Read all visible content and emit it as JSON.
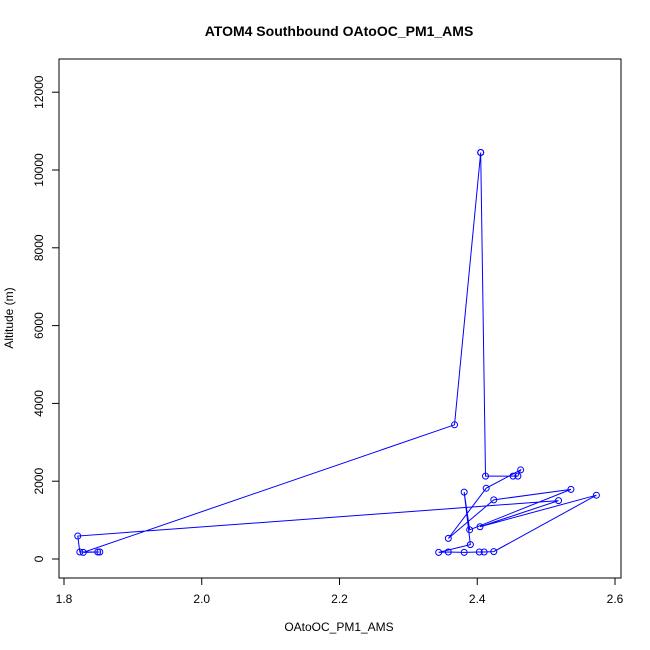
{
  "chart_data": {
    "type": "line",
    "title": "ATOM4 Southbound OAtoOC_PM1_AMS",
    "xlabel": "OAtoOC_PM1_AMS",
    "ylabel": "Altitude (m)",
    "xlim": [
      1.8,
      2.6
    ],
    "ylim": [
      0,
      12000
    ],
    "xticks": [
      "1.8",
      "2.0",
      "2.2",
      "2.4",
      "2.6"
    ],
    "yticks": [
      "0",
      "2000",
      "4000",
      "6000",
      "8000",
      "10000",
      "12000"
    ],
    "line_color": "#0000ff",
    "marker": "open-circle",
    "points": [
      {
        "x": 2.405,
        "y": 10450
      },
      {
        "x": 2.367,
        "y": 3450
      },
      {
        "x": 1.828,
        "y": 170
      },
      {
        "x": 1.852,
        "y": 180
      },
      {
        "x": 1.849,
        "y": 180
      },
      {
        "x": 1.823,
        "y": 180
      },
      {
        "x": 1.82,
        "y": 590
      },
      {
        "x": 2.518,
        "y": 1500
      },
      {
        "x": 2.404,
        "y": 830
      },
      {
        "x": 2.573,
        "y": 1640
      },
      {
        "x": 2.424,
        "y": 190
      },
      {
        "x": 2.41,
        "y": 180
      },
      {
        "x": 2.403,
        "y": 180
      },
      {
        "x": 2.381,
        "y": 170
      },
      {
        "x": 2.358,
        "y": 180
      },
      {
        "x": 2.344,
        "y": 170
      },
      {
        "x": 2.39,
        "y": 370
      },
      {
        "x": 2.381,
        "y": 1720
      },
      {
        "x": 2.389,
        "y": 750
      },
      {
        "x": 2.536,
        "y": 1790
      },
      {
        "x": 2.424,
        "y": 1520
      },
      {
        "x": 2.358,
        "y": 530
      },
      {
        "x": 2.413,
        "y": 1820
      },
      {
        "x": 2.463,
        "y": 2290
      },
      {
        "x": 2.459,
        "y": 2130
      },
      {
        "x": 2.452,
        "y": 2130
      },
      {
        "x": 2.412,
        "y": 2130
      },
      {
        "x": 2.405,
        "y": 10450
      }
    ]
  }
}
